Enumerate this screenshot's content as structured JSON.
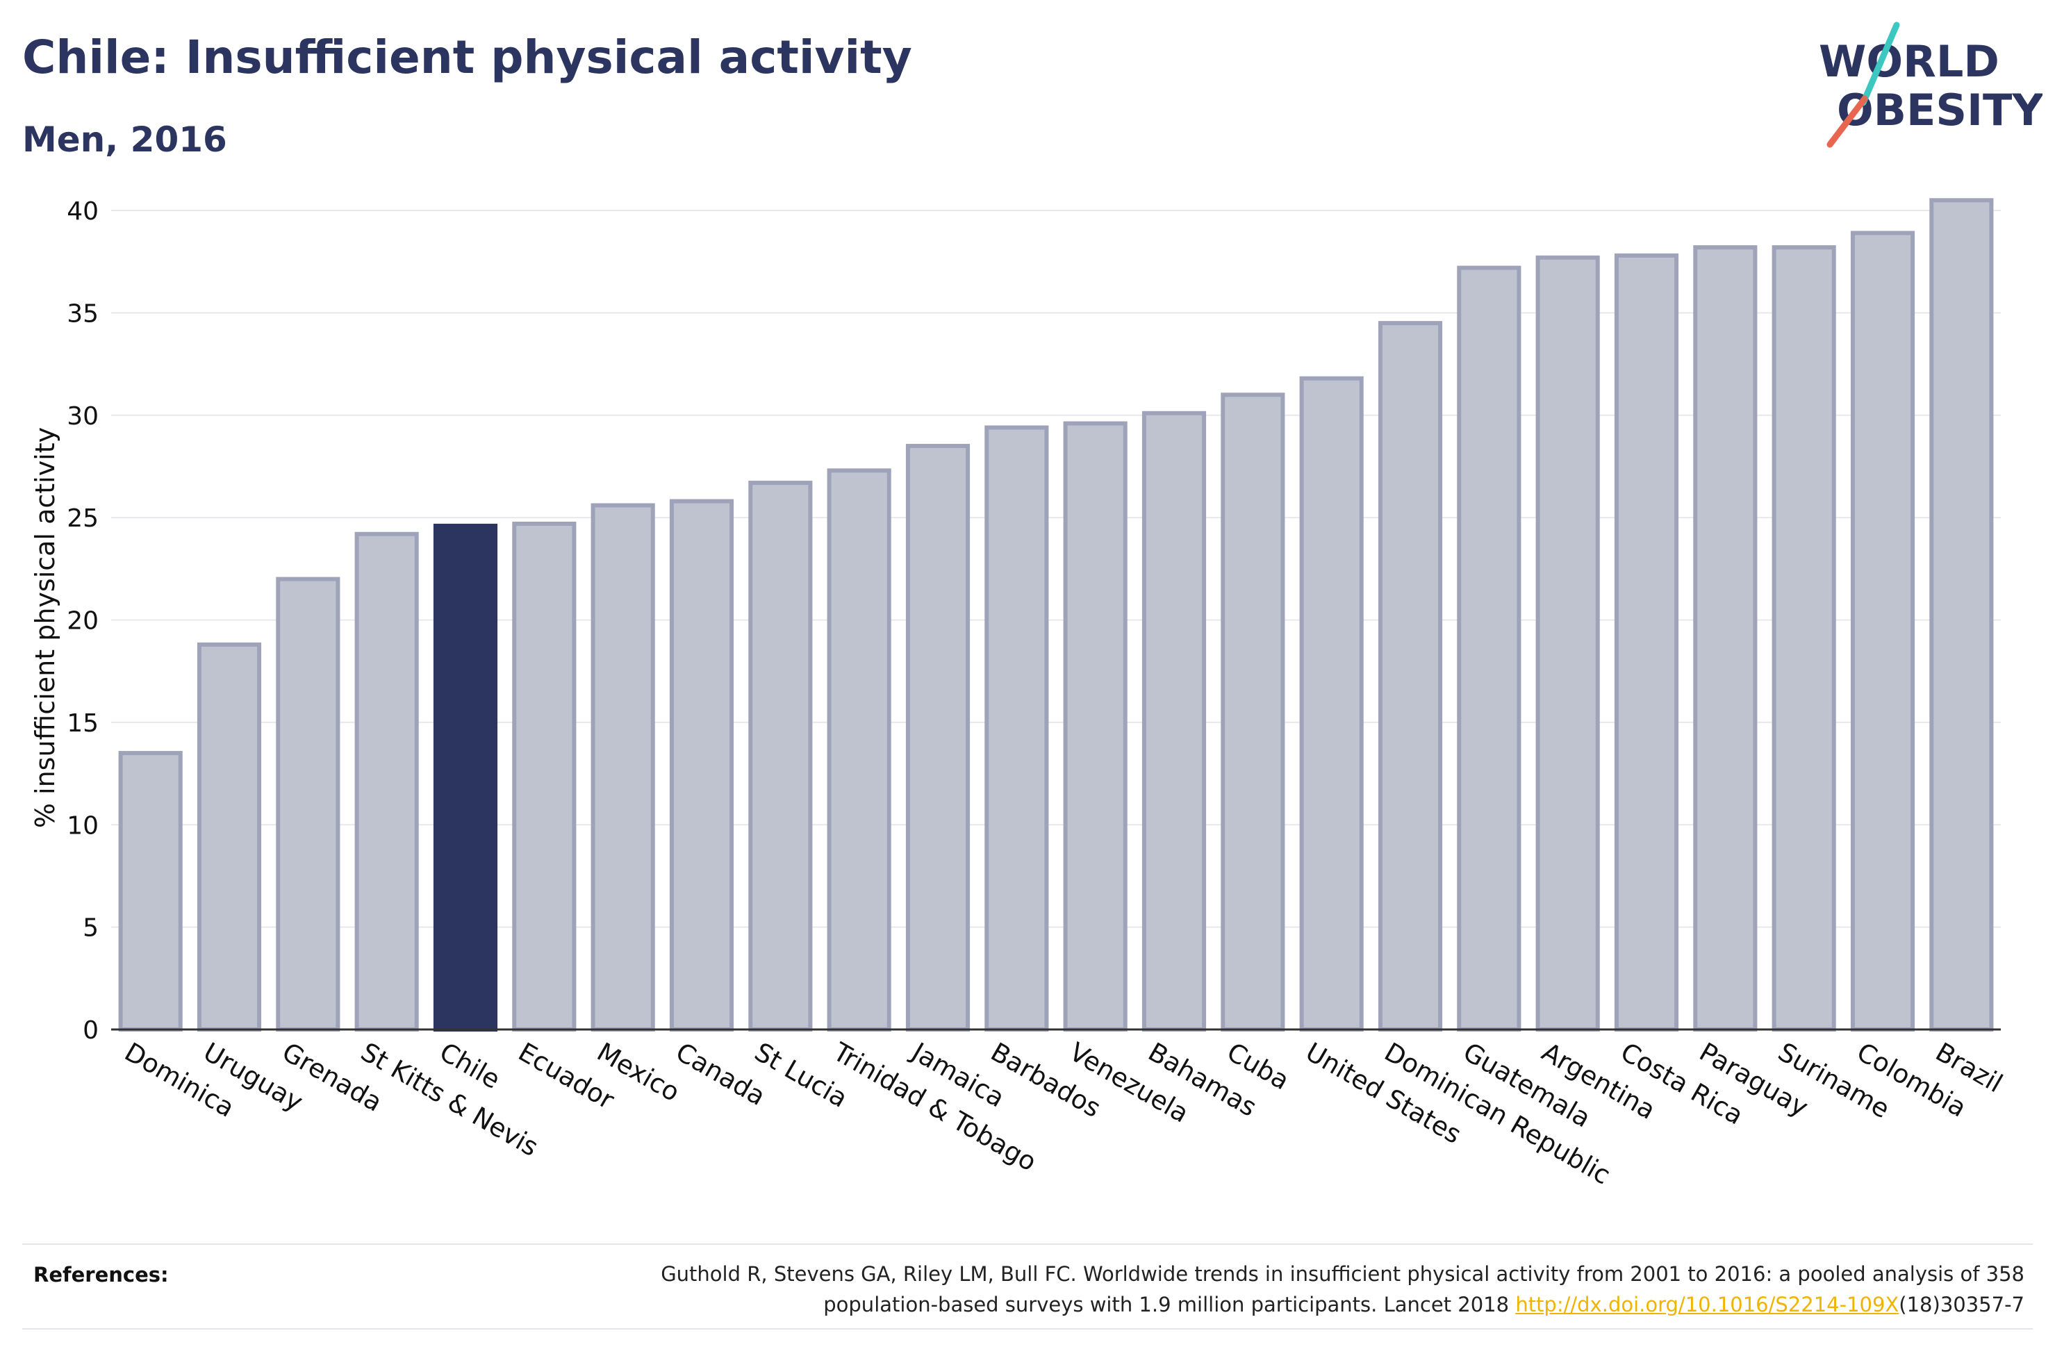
{
  "header": {
    "title": "Chile: Insufficient physical activity",
    "subtitle": "Men, 2016"
  },
  "logo": {
    "line1": "WORLD",
    "line2": "OBESITY",
    "colors": {
      "text": "#2b3560",
      "slash_top": "#3cc7c0",
      "slash_bottom": "#e8664f"
    }
  },
  "chart_data": {
    "type": "bar",
    "categories": [
      "Dominica",
      "Uruguay",
      "Grenada",
      "St Kitts & Nevis",
      "Chile",
      "Ecuador",
      "Mexico",
      "Canada",
      "St Lucia",
      "Trinidad & Tobago",
      "Jamaica",
      "Barbados",
      "Venezuela",
      "Bahamas",
      "Cuba",
      "United States",
      "Dominican Republic",
      "Guatemala",
      "Argentina",
      "Costa Rica",
      "Paraguay",
      "Suriname",
      "Colombia",
      "Brazil"
    ],
    "values": [
      13.5,
      18.8,
      22.0,
      24.2,
      24.6,
      24.7,
      25.6,
      25.8,
      26.7,
      27.3,
      28.5,
      29.4,
      29.6,
      30.1,
      31.0,
      31.8,
      34.5,
      37.2,
      37.7,
      37.8,
      38.2,
      38.2,
      38.9,
      40.5
    ],
    "highlight": "Chile",
    "ylabel": "% insufficient physical activity",
    "ylim": [
      0,
      40
    ],
    "yticks": [
      "0",
      "5",
      "10",
      "15",
      "20",
      "25",
      "30",
      "35",
      "40"
    ],
    "grid": true,
    "colors": {
      "bar": "#bfc2cf",
      "bar_edge": "#9ea3b9",
      "highlight": "#2b3560",
      "grid": "#e8e8ec",
      "axis": "#333333"
    }
  },
  "references": {
    "label": "References:",
    "text_line1": "Guthold R, Stevens GA, Riley LM, Bull FC. Worldwide trends in insufficient physical activity from 2001 to 2016: a pooled analysis of 358",
    "text_line2_before": "population-based surveys with 1.9 million participants. Lancet 2018 ",
    "link": "http://dx.doi.org/10.1016/S2214-109X",
    "text_line2_after": "(18)30357-7"
  }
}
